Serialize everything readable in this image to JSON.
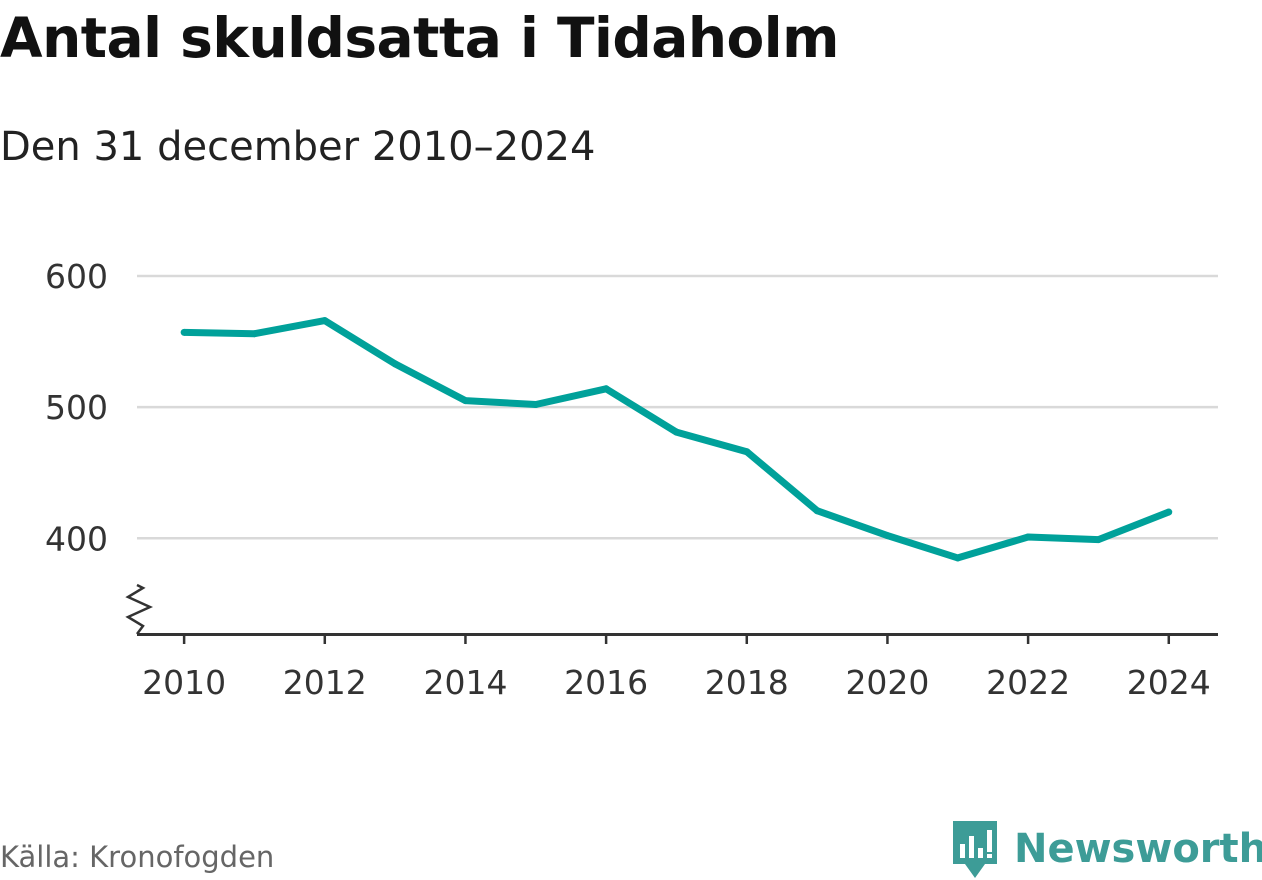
{
  "chart_data": {
    "type": "line",
    "title": "Antal skuldsatta i Tidaholm",
    "subtitle": "Den 31 december 2010–2024",
    "xlabel": "",
    "ylabel": "",
    "x": [
      2010,
      2011,
      2012,
      2013,
      2014,
      2015,
      2016,
      2017,
      2018,
      2019,
      2020,
      2021,
      2022,
      2023,
      2024
    ],
    "series": [
      {
        "name": "Antal skuldsatta",
        "values": [
          557,
          556,
          566,
          533,
          505,
          502,
          514,
          481,
          466,
          421,
          402,
          385,
          401,
          399,
          420
        ]
      }
    ],
    "x_ticks": [
      "2010",
      "2012",
      "2014",
      "2016",
      "2018",
      "2020",
      "2022",
      "2024"
    ],
    "y_ticks": [
      "600",
      "500",
      "400"
    ],
    "xlim": [
      2009.33,
      2024.7
    ],
    "ylim": [
      327,
      600
    ],
    "y_axis_break": true,
    "grid": true,
    "line_color": "#00a19a"
  },
  "footer": {
    "source": "Källa: Kronofogden",
    "brand": "Newsworthy",
    "brand_color": "#3d9c97",
    "logo_icon": "newsworthy-logo-icon"
  }
}
